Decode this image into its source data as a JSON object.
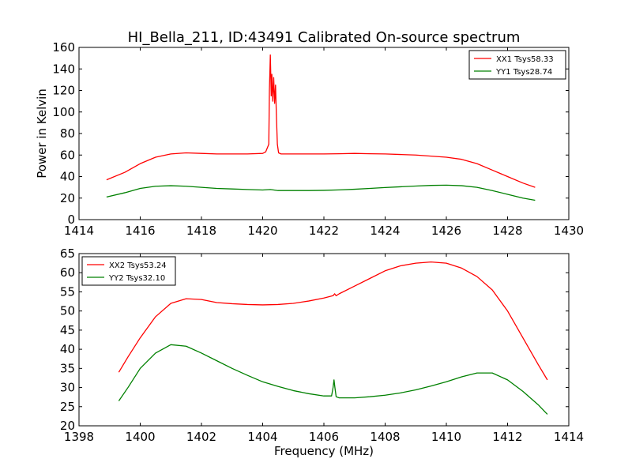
{
  "title": "HI_Bella_211, ID:43491 Calibrated On-source spectrum",
  "colors": {
    "red": "#ff0000",
    "green": "#008000"
  },
  "chart_data": [
    {
      "type": "line",
      "ylabel": "Power in Kelvin",
      "xlabel": "",
      "xlim": [
        1414,
        1430
      ],
      "ylim": [
        0,
        160
      ],
      "xticks": [
        1414,
        1416,
        1418,
        1420,
        1422,
        1424,
        1426,
        1428,
        1430
      ],
      "yticks": [
        0,
        20,
        40,
        60,
        80,
        100,
        120,
        140,
        160
      ],
      "legend_position": "top-right",
      "series": [
        {
          "name": "XX1 Tsys58.33",
          "color": "#ff0000",
          "x": [
            1414.9,
            1415.5,
            1416.0,
            1416.5,
            1417.0,
            1417.5,
            1418.0,
            1418.5,
            1419.0,
            1419.5,
            1420.0,
            1420.1,
            1420.2,
            1420.22,
            1420.25,
            1420.28,
            1420.3,
            1420.33,
            1420.36,
            1420.39,
            1420.42,
            1420.45,
            1420.48,
            1420.52,
            1420.6,
            1421.0,
            1421.5,
            1422.0,
            1422.5,
            1423.0,
            1423.5,
            1424.0,
            1424.5,
            1425.0,
            1425.5,
            1426.0,
            1426.5,
            1427.0,
            1427.5,
            1428.0,
            1428.5,
            1428.9
          ],
          "y": [
            37,
            44,
            52,
            58,
            61,
            62,
            61.5,
            61,
            61,
            61,
            61.5,
            63,
            70,
            120,
            153,
            115,
            135,
            110,
            132,
            108,
            125,
            95,
            70,
            62,
            61,
            61,
            61,
            61,
            61.2,
            61.5,
            61.2,
            61,
            60.5,
            60,
            59,
            58,
            56,
            52,
            46,
            40,
            34,
            30
          ]
        },
        {
          "name": "YY1 Tsys28.74",
          "color": "#008000",
          "x": [
            1414.9,
            1415.5,
            1416.0,
            1416.5,
            1417.0,
            1417.5,
            1418.0,
            1418.5,
            1419.0,
            1419.5,
            1420.0,
            1420.25,
            1420.5,
            1421.0,
            1421.5,
            1422.0,
            1422.5,
            1423.0,
            1423.5,
            1424.0,
            1424.5,
            1425.0,
            1425.5,
            1426.0,
            1426.5,
            1427.0,
            1427.5,
            1428.0,
            1428.5,
            1428.9
          ],
          "y": [
            21,
            25,
            29,
            31,
            31.5,
            31,
            30,
            29,
            28.5,
            28,
            27.5,
            28,
            27,
            27,
            27,
            27.2,
            27.6,
            28.2,
            29,
            29.8,
            30.5,
            31.2,
            31.8,
            32,
            31.5,
            30,
            27,
            23.5,
            20,
            18
          ]
        }
      ]
    },
    {
      "type": "line",
      "ylabel": "",
      "xlabel": "Frequency (MHz)",
      "xlim": [
        1398,
        1414
      ],
      "ylim": [
        20,
        65
      ],
      "xticks": [
        1398,
        1400,
        1402,
        1404,
        1406,
        1408,
        1410,
        1412,
        1414
      ],
      "yticks": [
        20,
        25,
        30,
        35,
        40,
        45,
        50,
        55,
        60,
        65
      ],
      "legend_position": "top-left",
      "series": [
        {
          "name": "XX2 Tsys53.24",
          "color": "#ff0000",
          "x": [
            1399.3,
            1399.6,
            1400.0,
            1400.5,
            1401.0,
            1401.5,
            1402.0,
            1402.5,
            1403.0,
            1403.5,
            1404.0,
            1404.5,
            1405.0,
            1405.5,
            1406.0,
            1406.3,
            1406.35,
            1406.4,
            1406.5,
            1407.0,
            1407.5,
            1408.0,
            1408.5,
            1409.0,
            1409.5,
            1410.0,
            1410.5,
            1411.0,
            1411.5,
            1412.0,
            1412.5,
            1413.0,
            1413.3
          ],
          "y": [
            34,
            38,
            43,
            48.5,
            52,
            53.2,
            53,
            52.2,
            51.9,
            51.7,
            51.6,
            51.7,
            52,
            52.6,
            53.4,
            54,
            54.5,
            54,
            54.5,
            56.5,
            58.5,
            60.5,
            61.8,
            62.5,
            62.8,
            62.5,
            61.2,
            59,
            55.5,
            50,
            43,
            36,
            32
          ]
        },
        {
          "name": "YY2 Tsys32.10",
          "color": "#008000",
          "x": [
            1399.3,
            1399.6,
            1400.0,
            1400.5,
            1401.0,
            1401.5,
            1402.0,
            1402.5,
            1403.0,
            1403.5,
            1404.0,
            1404.5,
            1405.0,
            1405.5,
            1406.0,
            1406.25,
            1406.3,
            1406.33,
            1406.36,
            1406.4,
            1406.5,
            1407.0,
            1407.5,
            1408.0,
            1408.5,
            1409.0,
            1409.5,
            1410.0,
            1410.5,
            1411.0,
            1411.5,
            1412.0,
            1412.5,
            1413.0,
            1413.3
          ],
          "y": [
            26.5,
            30,
            35,
            39,
            41.2,
            40.8,
            39,
            37,
            35,
            33.2,
            31.5,
            30.3,
            29.2,
            28.4,
            27.8,
            27.8,
            30,
            32,
            30,
            27.6,
            27.3,
            27.3,
            27.6,
            28,
            28.6,
            29.4,
            30.4,
            31.5,
            32.8,
            33.8,
            33.8,
            32,
            29,
            25.5,
            23
          ]
        }
      ]
    }
  ]
}
